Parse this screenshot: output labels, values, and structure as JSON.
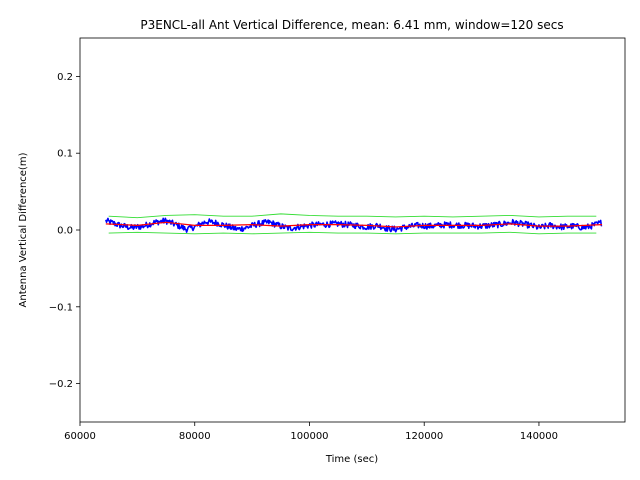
{
  "chart_data": {
    "type": "line",
    "title": "P3ENCL-all Ant Vertical Difference, mean: 6.41 mm, window=120 secs",
    "xlabel": "Time (sec)",
    "ylabel": "Antenna Vertical Difference(m)",
    "xlim": [
      60000,
      155000
    ],
    "ylim": [
      -0.25,
      0.25
    ],
    "x_ticks": [
      60000,
      80000,
      100000,
      120000,
      140000
    ],
    "x_tick_labels": [
      "60000",
      "80000",
      "100000",
      "120000",
      "140000"
    ],
    "y_ticks": [
      -0.2,
      -0.1,
      0.0,
      0.1,
      0.2
    ],
    "y_tick_labels": [
      "−0.2",
      "−0.1",
      "0.0",
      "0.1",
      "0.2"
    ],
    "grid": false,
    "legend": "none",
    "series": [
      {
        "color": "#0000ff",
        "style": "noisy-line",
        "x": [
          64500,
          67000,
          69000,
          71000,
          73000,
          75000,
          77000,
          78500,
          80000,
          82000,
          84000,
          86000,
          87500,
          89000,
          91000,
          93000,
          95000,
          96500,
          98000,
          100000,
          102000,
          105000,
          108000,
          110000,
          112000,
          113500,
          115000,
          117000,
          119000,
          121000,
          124000,
          127000,
          130000,
          133000,
          135500,
          137000,
          138500,
          140000,
          142000,
          144000,
          146000,
          148000,
          149500,
          151000
        ],
        "values": [
          0.012,
          0.006,
          0.003,
          0.005,
          0.01,
          0.012,
          0.006,
          0.001,
          0.004,
          0.011,
          0.009,
          0.004,
          0.001,
          0.003,
          0.008,
          0.01,
          0.005,
          0.002,
          0.004,
          0.006,
          0.007,
          0.008,
          0.006,
          0.004,
          0.006,
          0.002,
          0.001,
          0.004,
          0.006,
          0.005,
          0.007,
          0.006,
          0.005,
          0.007,
          0.01,
          0.008,
          0.006,
          0.003,
          0.006,
          0.004,
          0.005,
          0.003,
          0.006,
          0.01
        ],
        "noise_amplitude": 0.004
      },
      {
        "color": "#ff0000",
        "style": "mean-line",
        "x": [
          64500,
          70000,
          75000,
          80000,
          85000,
          90000,
          95000,
          100000,
          105000,
          110000,
          115000,
          120000,
          125000,
          130000,
          135000,
          140000,
          145000,
          151000
        ],
        "values": [
          0.008,
          0.006,
          0.01,
          0.006,
          0.006,
          0.007,
          0.005,
          0.007,
          0.007,
          0.006,
          0.004,
          0.006,
          0.006,
          0.006,
          0.008,
          0.005,
          0.005,
          0.007
        ]
      },
      {
        "color": "#33dd33",
        "style": "upper-band",
        "x": [
          65000,
          70000,
          75000,
          80000,
          85000,
          90000,
          95000,
          100000,
          105000,
          110000,
          115000,
          120000,
          125000,
          130000,
          135000,
          140000,
          145000,
          150000
        ],
        "values": [
          0.018,
          0.016,
          0.019,
          0.02,
          0.018,
          0.018,
          0.021,
          0.019,
          0.018,
          0.018,
          0.017,
          0.018,
          0.017,
          0.018,
          0.019,
          0.017,
          0.018,
          0.018
        ]
      },
      {
        "color": "#33dd33",
        "style": "lower-band",
        "x": [
          65000,
          70000,
          75000,
          80000,
          85000,
          90000,
          95000,
          100000,
          105000,
          110000,
          115000,
          120000,
          125000,
          130000,
          135000,
          140000,
          145000,
          150000
        ],
        "values": [
          -0.004,
          -0.003,
          -0.004,
          -0.005,
          -0.004,
          -0.005,
          -0.004,
          -0.003,
          -0.004,
          -0.004,
          -0.005,
          -0.004,
          -0.004,
          -0.004,
          -0.003,
          -0.005,
          -0.004,
          -0.004
        ]
      }
    ]
  }
}
